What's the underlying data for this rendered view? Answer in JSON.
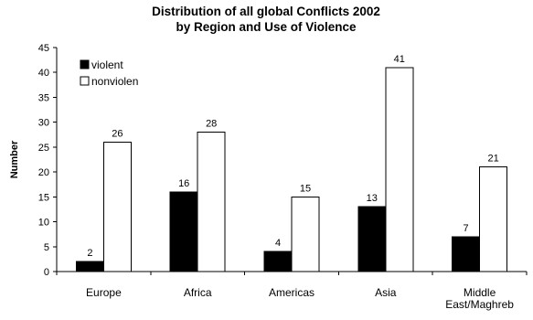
{
  "chart_data": {
    "type": "bar",
    "title": [
      "Distribution of all global Conflicts 2002",
      "by Region and Use of Violence"
    ],
    "xlabel": "",
    "ylabel": "Number",
    "ylim": [
      0,
      45
    ],
    "yticks": [
      0,
      5,
      10,
      15,
      20,
      25,
      30,
      35,
      40,
      45
    ],
    "categories": [
      [
        "Europe"
      ],
      [
        "Africa"
      ],
      [
        "Americas"
      ],
      [
        "Asia"
      ],
      [
        "Middle",
        "East/Maghreb"
      ]
    ],
    "series": [
      {
        "name": "violent",
        "values": [
          2,
          16,
          4,
          13,
          7
        ],
        "color": "#000000"
      },
      {
        "name": "nonviolen",
        "values": [
          26,
          28,
          15,
          41,
          21
        ],
        "color": "#ffffff"
      }
    ],
    "grid": false,
    "legend_position": "top-left"
  }
}
